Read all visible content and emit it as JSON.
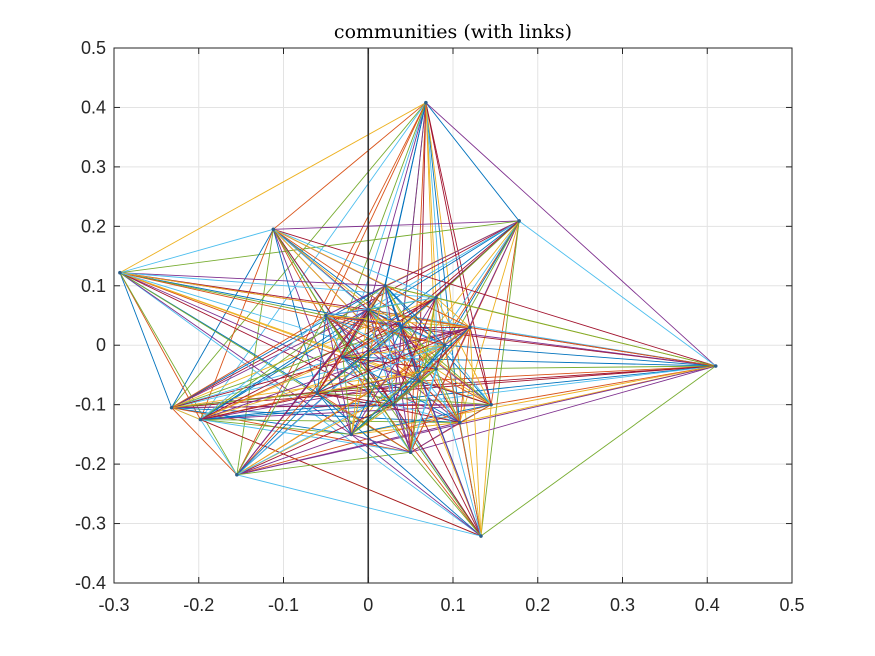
{
  "chart_data": {
    "type": "scatter",
    "title": "communities (with links)",
    "xlabel": "",
    "ylabel": "",
    "xlim": [
      -0.3,
      0.5
    ],
    "ylim": [
      -0.4,
      0.5
    ],
    "x_ticks": [
      -0.3,
      -0.2,
      -0.1,
      0,
      0.1,
      0.2,
      0.3,
      0.4,
      0.5
    ],
    "y_ticks": [
      -0.4,
      -0.3,
      -0.2,
      -0.1,
      0,
      0.1,
      0.2,
      0.3,
      0.4,
      0.5
    ],
    "x_tick_labels": [
      "-0.3",
      "-0.2",
      "-0.1",
      "0",
      "0.1",
      "0.2",
      "0.3",
      "0.4",
      "0.5"
    ],
    "y_tick_labels": [
      "-0.4",
      "-0.3",
      "-0.2",
      "-0.1",
      "0",
      "0.1",
      "0.2",
      "0.3",
      "0.4",
      "0.5"
    ],
    "grid": true,
    "vertical_reference_line_x": 0,
    "nodes": [
      {
        "x": 0.068,
        "y": 0.408
      },
      {
        "x": 0.178,
        "y": 0.209
      },
      {
        "x": -0.112,
        "y": 0.195
      },
      {
        "x": -0.293,
        "y": 0.122
      },
      {
        "x": 0.41,
        "y": -0.035
      },
      {
        "x": -0.232,
        "y": -0.105
      },
      {
        "x": -0.198,
        "y": -0.125
      },
      {
        "x": 0.145,
        "y": -0.1
      },
      {
        "x": 0.108,
        "y": -0.13
      },
      {
        "x": -0.155,
        "y": -0.218
      },
      {
        "x": 0.133,
        "y": -0.321
      },
      {
        "x": 0.0,
        "y": 0.06
      },
      {
        "x": 0.04,
        "y": 0.03
      },
      {
        "x": -0.03,
        "y": -0.02
      },
      {
        "x": 0.06,
        "y": -0.06
      },
      {
        "x": 0.02,
        "y": 0.1
      },
      {
        "x": -0.05,
        "y": 0.05
      },
      {
        "x": 0.08,
        "y": 0.08
      },
      {
        "x": 0.03,
        "y": -0.1
      },
      {
        "x": -0.06,
        "y": -0.08
      },
      {
        "x": 0.09,
        "y": 0.0
      },
      {
        "x": 0.12,
        "y": 0.03
      },
      {
        "x": -0.02,
        "y": -0.15
      },
      {
        "x": 0.05,
        "y": -0.18
      },
      {
        "x": 0.08,
        "y": -0.04
      }
    ],
    "series_colors": [
      "#0072BD",
      "#D95319",
      "#EDB120",
      "#7E2F8E",
      "#77AC30",
      "#4DBEEE",
      "#A2142F"
    ]
  }
}
